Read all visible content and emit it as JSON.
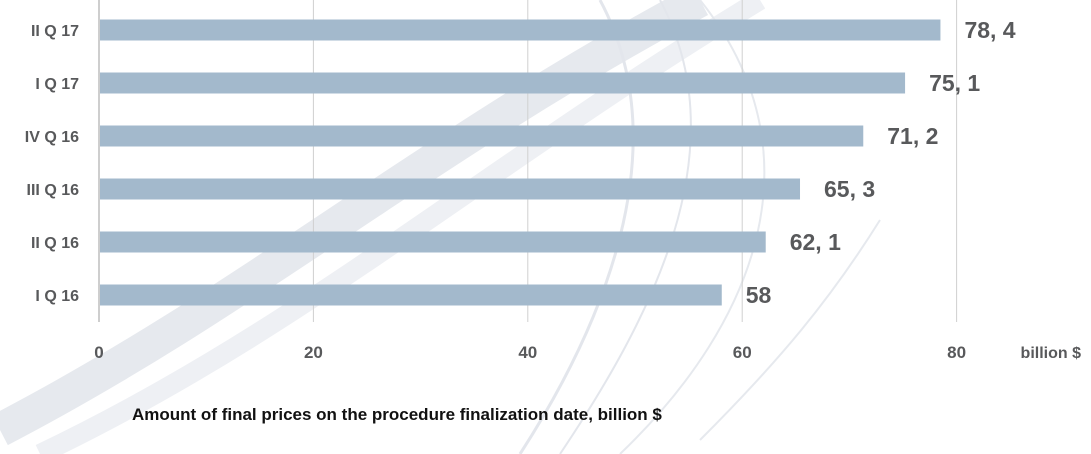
{
  "chart_data": {
    "type": "bar",
    "orientation": "horizontal",
    "categories": [
      "II Q 17",
      "I Q 17",
      "IV Q 16",
      "III Q 16",
      "II Q 16",
      "I Q 16"
    ],
    "values": [
      78.4,
      75.1,
      71.2,
      65.3,
      62.1,
      58
    ],
    "value_labels": [
      "78, 4",
      "75, 1",
      "71, 2",
      "65, 3",
      "62, 1",
      "58"
    ],
    "title": "Amount of final prices on the procedure finalization date, billion $",
    "unit_label": "billion $",
    "xticks": [
      0,
      20,
      40,
      60,
      80
    ],
    "xlim": [
      0,
      81
    ],
    "grid": true,
    "colors": {
      "bar": "#a3b9cc",
      "label": "#58595b",
      "grid": "#d0d0d0",
      "axis": "#bdbdbd",
      "swoosh": "#e3e6ec"
    }
  }
}
